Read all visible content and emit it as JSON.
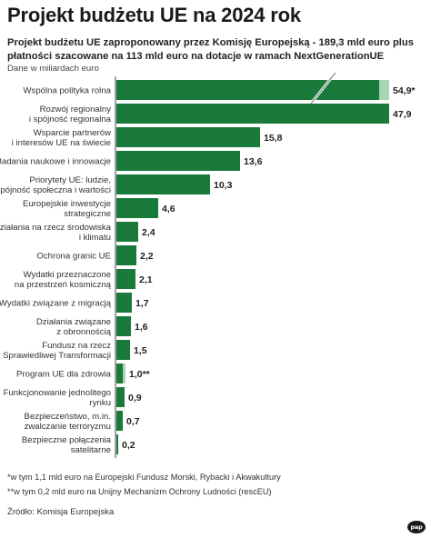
{
  "title": "Projekt budżetu UE na 2024 rok",
  "subtitle": "Projekt budżetu UE zaproponowany przez Komisję Europejską -  189,3 mld euro plus płatności szacowane na 113 mld euro na dotacje w ramach NextGenerationUE",
  "unit_note": "Dane w miliardach euro",
  "notes": [
    "*w tym 1,1 mld euro na Europejski Fundusz Morski, Rybacki i Akwakultury",
    "**w tym 0,2 mld euro na Unijny Mechanizm Ochrony Ludności (rescEU)"
  ],
  "source": "Źródło: Komisja Europejska",
  "logo_text": "pap",
  "colors": {
    "bar": "#1a7a3a",
    "bar_light": "#a9d5b2",
    "axis": "#444444",
    "text": "#333333"
  },
  "chart_data": {
    "type": "bar",
    "orientation": "horizontal",
    "categories": [
      [
        "Wspólna polityka rolna"
      ],
      [
        "Rozwój regionalny",
        "i spójność regionalna"
      ],
      [
        "Wsparcie partnerów",
        "i interesów UE na świecie"
      ],
      [
        "Badania naukowe i innowacje"
      ],
      [
        "Priorytety UE: ludzie,",
        "spójność społeczna i wartości"
      ],
      [
        "Europejskie inwestycje",
        "strategiczne"
      ],
      [
        "Działania na rzecz środowiska",
        "i klimatu"
      ],
      [
        "Ochrona granic UE"
      ],
      [
        "Wydatki przeznaczone",
        "na przestrzeń kosmiczną"
      ],
      [
        "Wydatki związane z migracją"
      ],
      [
        "Działania związane",
        "z obronnością"
      ],
      [
        "Fundusz na rzecz",
        "Sprawiedliwej Transformacji"
      ],
      [
        "Program UE dla zdrowia"
      ],
      [
        "Funkcjonowanie jednolitego",
        "rynku"
      ],
      [
        "Bezpieczeństwo, m.in.",
        "zwalczanie terroryzmu"
      ],
      [
        "Bezpieczne połączenia",
        "satelitarne"
      ]
    ],
    "values": [
      54.9,
      47.9,
      15.8,
      13.6,
      10.3,
      4.6,
      2.4,
      2.2,
      2.1,
      1.7,
      1.6,
      1.5,
      1.0,
      0.9,
      0.7,
      0.2
    ],
    "value_labels": [
      "54,9*",
      "47,9",
      "15,8",
      "13,6",
      "10,3",
      "4,6",
      "2,4",
      "2,2",
      "2,1",
      "1,7",
      "1,6",
      "1,5",
      "1,0**",
      "0,9",
      "0,7",
      "0,2"
    ],
    "highlighted_part": [
      1.1,
      0,
      0,
      0,
      0,
      0,
      0,
      0,
      0,
      0,
      0,
      0,
      0.2,
      0,
      0,
      0
    ],
    "axis_break_on_first_bar": true,
    "grid": false,
    "legend": "none"
  }
}
